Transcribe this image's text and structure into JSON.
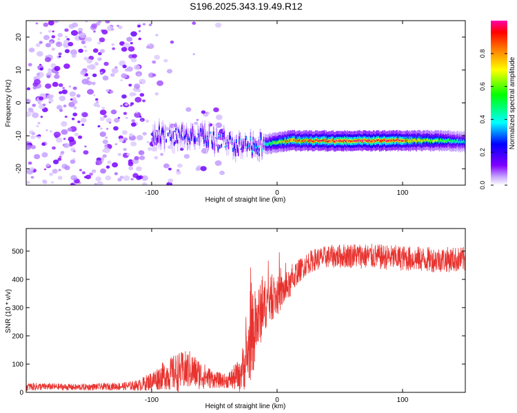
{
  "title": "S196.2025.343.19.49.R12",
  "chart_data": [
    {
      "type": "heatmap",
      "name": "spectrogram",
      "xlabel": "Height of straight line (km)",
      "ylabel": "Frequency (Hz)",
      "xlim": [
        -200,
        150
      ],
      "ylim": [
        -25,
        25
      ],
      "xticks": [
        -100,
        0,
        100
      ],
      "yticks": [
        -20,
        -10,
        0,
        10,
        20
      ],
      "grid": false,
      "colorbar": {
        "label": "Normalized spectral amplitude",
        "range": [
          0,
          1
        ],
        "ticks": [
          0.0,
          0.2,
          0.4,
          0.6,
          0.8
        ],
        "colors": [
          "#ffffff",
          "#8000ff",
          "#0000ff",
          "#00ffff",
          "#00ff00",
          "#ffff00",
          "#ff0000",
          "#ff00aa"
        ]
      },
      "line_feature": {
        "description_points_x_km": [
          -100,
          -60,
          -30,
          -10,
          10,
          50,
          90,
          130,
          150
        ],
        "frequency_hz": [
          -9.5,
          -10.5,
          -13,
          -12.5,
          -11.5,
          -11.5,
          -11.5,
          -11.5,
          -11.8
        ],
        "peak_amplitude": [
          0.25,
          0.3,
          0.3,
          0.45,
          0.85,
          0.95,
          0.95,
          0.6,
          0.4
        ]
      }
    },
    {
      "type": "line",
      "name": "snr",
      "xlabel": "Height of straight line (km)",
      "ylabel": "SNR (10 * v/v)",
      "xlim": [
        -200,
        150
      ],
      "ylim": [
        0,
        580
      ],
      "xticks": [
        -100,
        0,
        100
      ],
      "yticks": [
        0,
        100,
        200,
        300,
        400,
        500
      ],
      "grid": false,
      "color": "#e8322e",
      "series": [
        {
          "name": "SNR",
          "x": [
            -200,
            -180,
            -160,
            -140,
            -120,
            -110,
            -100,
            -90,
            -80,
            -70,
            -60,
            -50,
            -40,
            -30,
            -25,
            -20,
            -15,
            -10,
            -5,
            0,
            5,
            10,
            15,
            20,
            25,
            30,
            40,
            60,
            80,
            100,
            120,
            150
          ],
          "y": [
            20,
            20,
            18,
            20,
            22,
            25,
            40,
            60,
            70,
            80,
            60,
            45,
            40,
            60,
            110,
            200,
            260,
            310,
            330,
            340,
            360,
            380,
            420,
            440,
            460,
            470,
            480,
            485,
            480,
            475,
            470,
            470
          ],
          "noise_amplitude": [
            15,
            12,
            12,
            12,
            15,
            20,
            35,
            50,
            70,
            70,
            50,
            30,
            25,
            60,
            100,
            150,
            120,
            90,
            80,
            70,
            60,
            50,
            45,
            40,
            40,
            40,
            40,
            45,
            45,
            45,
            45,
            45
          ]
        }
      ]
    }
  ]
}
